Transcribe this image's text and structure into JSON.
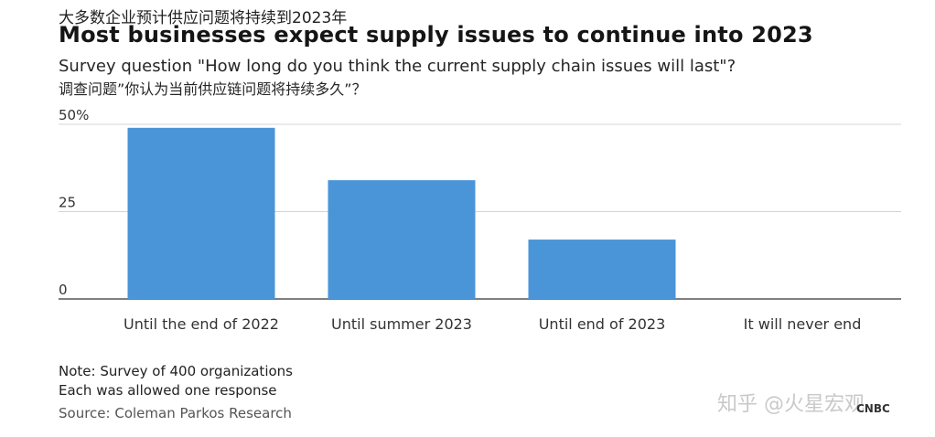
{
  "header": {
    "title_cn": "大多数企业预计供应问题将持续到2023年",
    "title_en": "Most businesses expect supply issues to continue into 2023",
    "subtitle_en": "Survey question \"How long do you think the current supply chain issues will last\"?",
    "subtitle_cn": "调查问题”你认为当前供应链问题将持续多久”？"
  },
  "chart_data": {
    "type": "bar",
    "categories": [
      "Until the end of 2022",
      "Until summer 2023",
      "Until end of 2023",
      "It will never end"
    ],
    "values": [
      49,
      34,
      17,
      0
    ],
    "y_ticks": [
      "50%",
      "25",
      "0"
    ],
    "ylim": [
      0,
      50
    ],
    "grid": true,
    "bar_color": "#4a95d8"
  },
  "footer": {
    "note_line1": "Note: Survey of 400 organizations",
    "note_line2": "Each was allowed one response",
    "source": "Source: Coleman Parkos Research",
    "watermark": "知乎 @火星宏观",
    "logo": "CNBC"
  }
}
